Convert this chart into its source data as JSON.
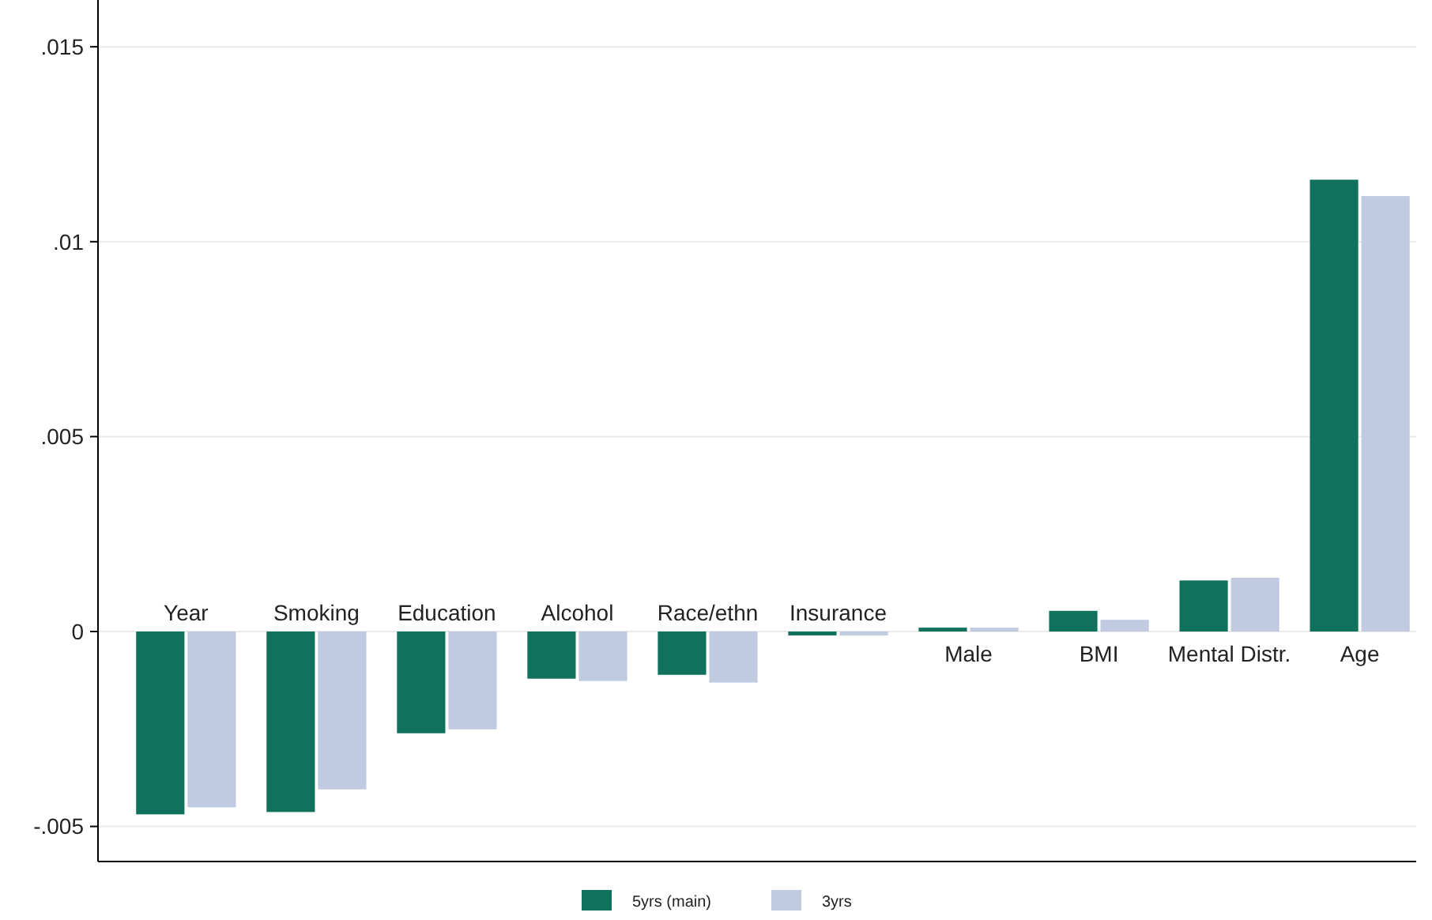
{
  "chart_data": {
    "type": "bar",
    "categories": [
      "Year",
      "Smoking",
      "Education",
      "Alcohol",
      "Race/ethn",
      "Insurance",
      "Male",
      "BMI",
      "Mental Distr.",
      "Age"
    ],
    "series": [
      {
        "name": "5yrs (main)",
        "color": "#10715c",
        "values": [
          -0.00469,
          -0.00463,
          -0.00261,
          -0.00121,
          -0.00111,
          -0.0001,
          0.0001,
          0.00053,
          0.00131,
          0.01159
        ]
      },
      {
        "name": "3yrs",
        "color": "#c0cbe2",
        "values": [
          -0.00451,
          -0.00405,
          -0.00251,
          -0.00127,
          -0.00131,
          -0.0001,
          0.0001,
          0.0003,
          0.00138,
          0.01117
        ]
      }
    ],
    "ylim": [
      -0.0059,
      0.0162
    ],
    "yticks": [
      {
        "value": -0.005,
        "label": "-.005"
      },
      {
        "value": 0,
        "label": "0"
      },
      {
        "value": 0.005,
        "label": ".005"
      },
      {
        "value": 0.01,
        "label": ".01"
      },
      {
        "value": 0.015,
        "label": ".015"
      }
    ],
    "grid": "y",
    "legend": "bottom"
  }
}
